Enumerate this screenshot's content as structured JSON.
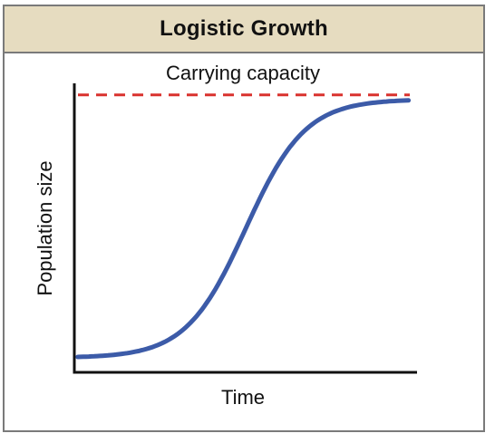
{
  "header": {
    "title": "Logistic Growth"
  },
  "chart_data": {
    "type": "line",
    "xlabel": "Time",
    "ylabel": "Population size",
    "annotation": "Carrying capacity",
    "carrying_capacity": 0.96,
    "x_range": [
      0,
      1
    ],
    "y_range": [
      0,
      1
    ],
    "ticks": false,
    "grid": false,
    "series": [
      {
        "values_model": "logistic",
        "K": 0.96,
        "y0": 0.05,
        "color": "#3c5ba8"
      }
    ],
    "threshold_color": "#d9322e"
  }
}
